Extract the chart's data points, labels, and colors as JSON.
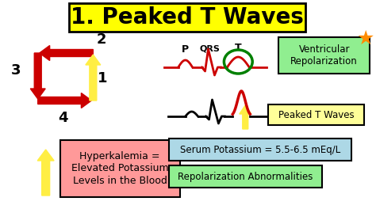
{
  "title": "1. Peaked T Waves",
  "title_bg": "#FFFF00",
  "bg_color": "#FFFFFF",
  "hyperkalemia_text": "Hyperkalemia =\nElevated Potassium\nLevels in the Blood",
  "hyperkalemia_bg": "#FF9999",
  "serum_text": "Serum Potassium = 5.5-6.5 mEq/L",
  "serum_bg": "#ADD8E6",
  "repol_text": "Repolarization Abnormalities",
  "repol_bg": "#90EE90",
  "ventricular_text": "Ventricular\nRepolarization",
  "ventricular_bg": "#90EE90",
  "peaked_label": "Peaked T Waves",
  "peaked_label_bg": "#FFFF99",
  "red_color": "#CC0000",
  "yellow_color": "#FFEE44",
  "star_color": "#FF8C00",
  "green_color": "#008000"
}
